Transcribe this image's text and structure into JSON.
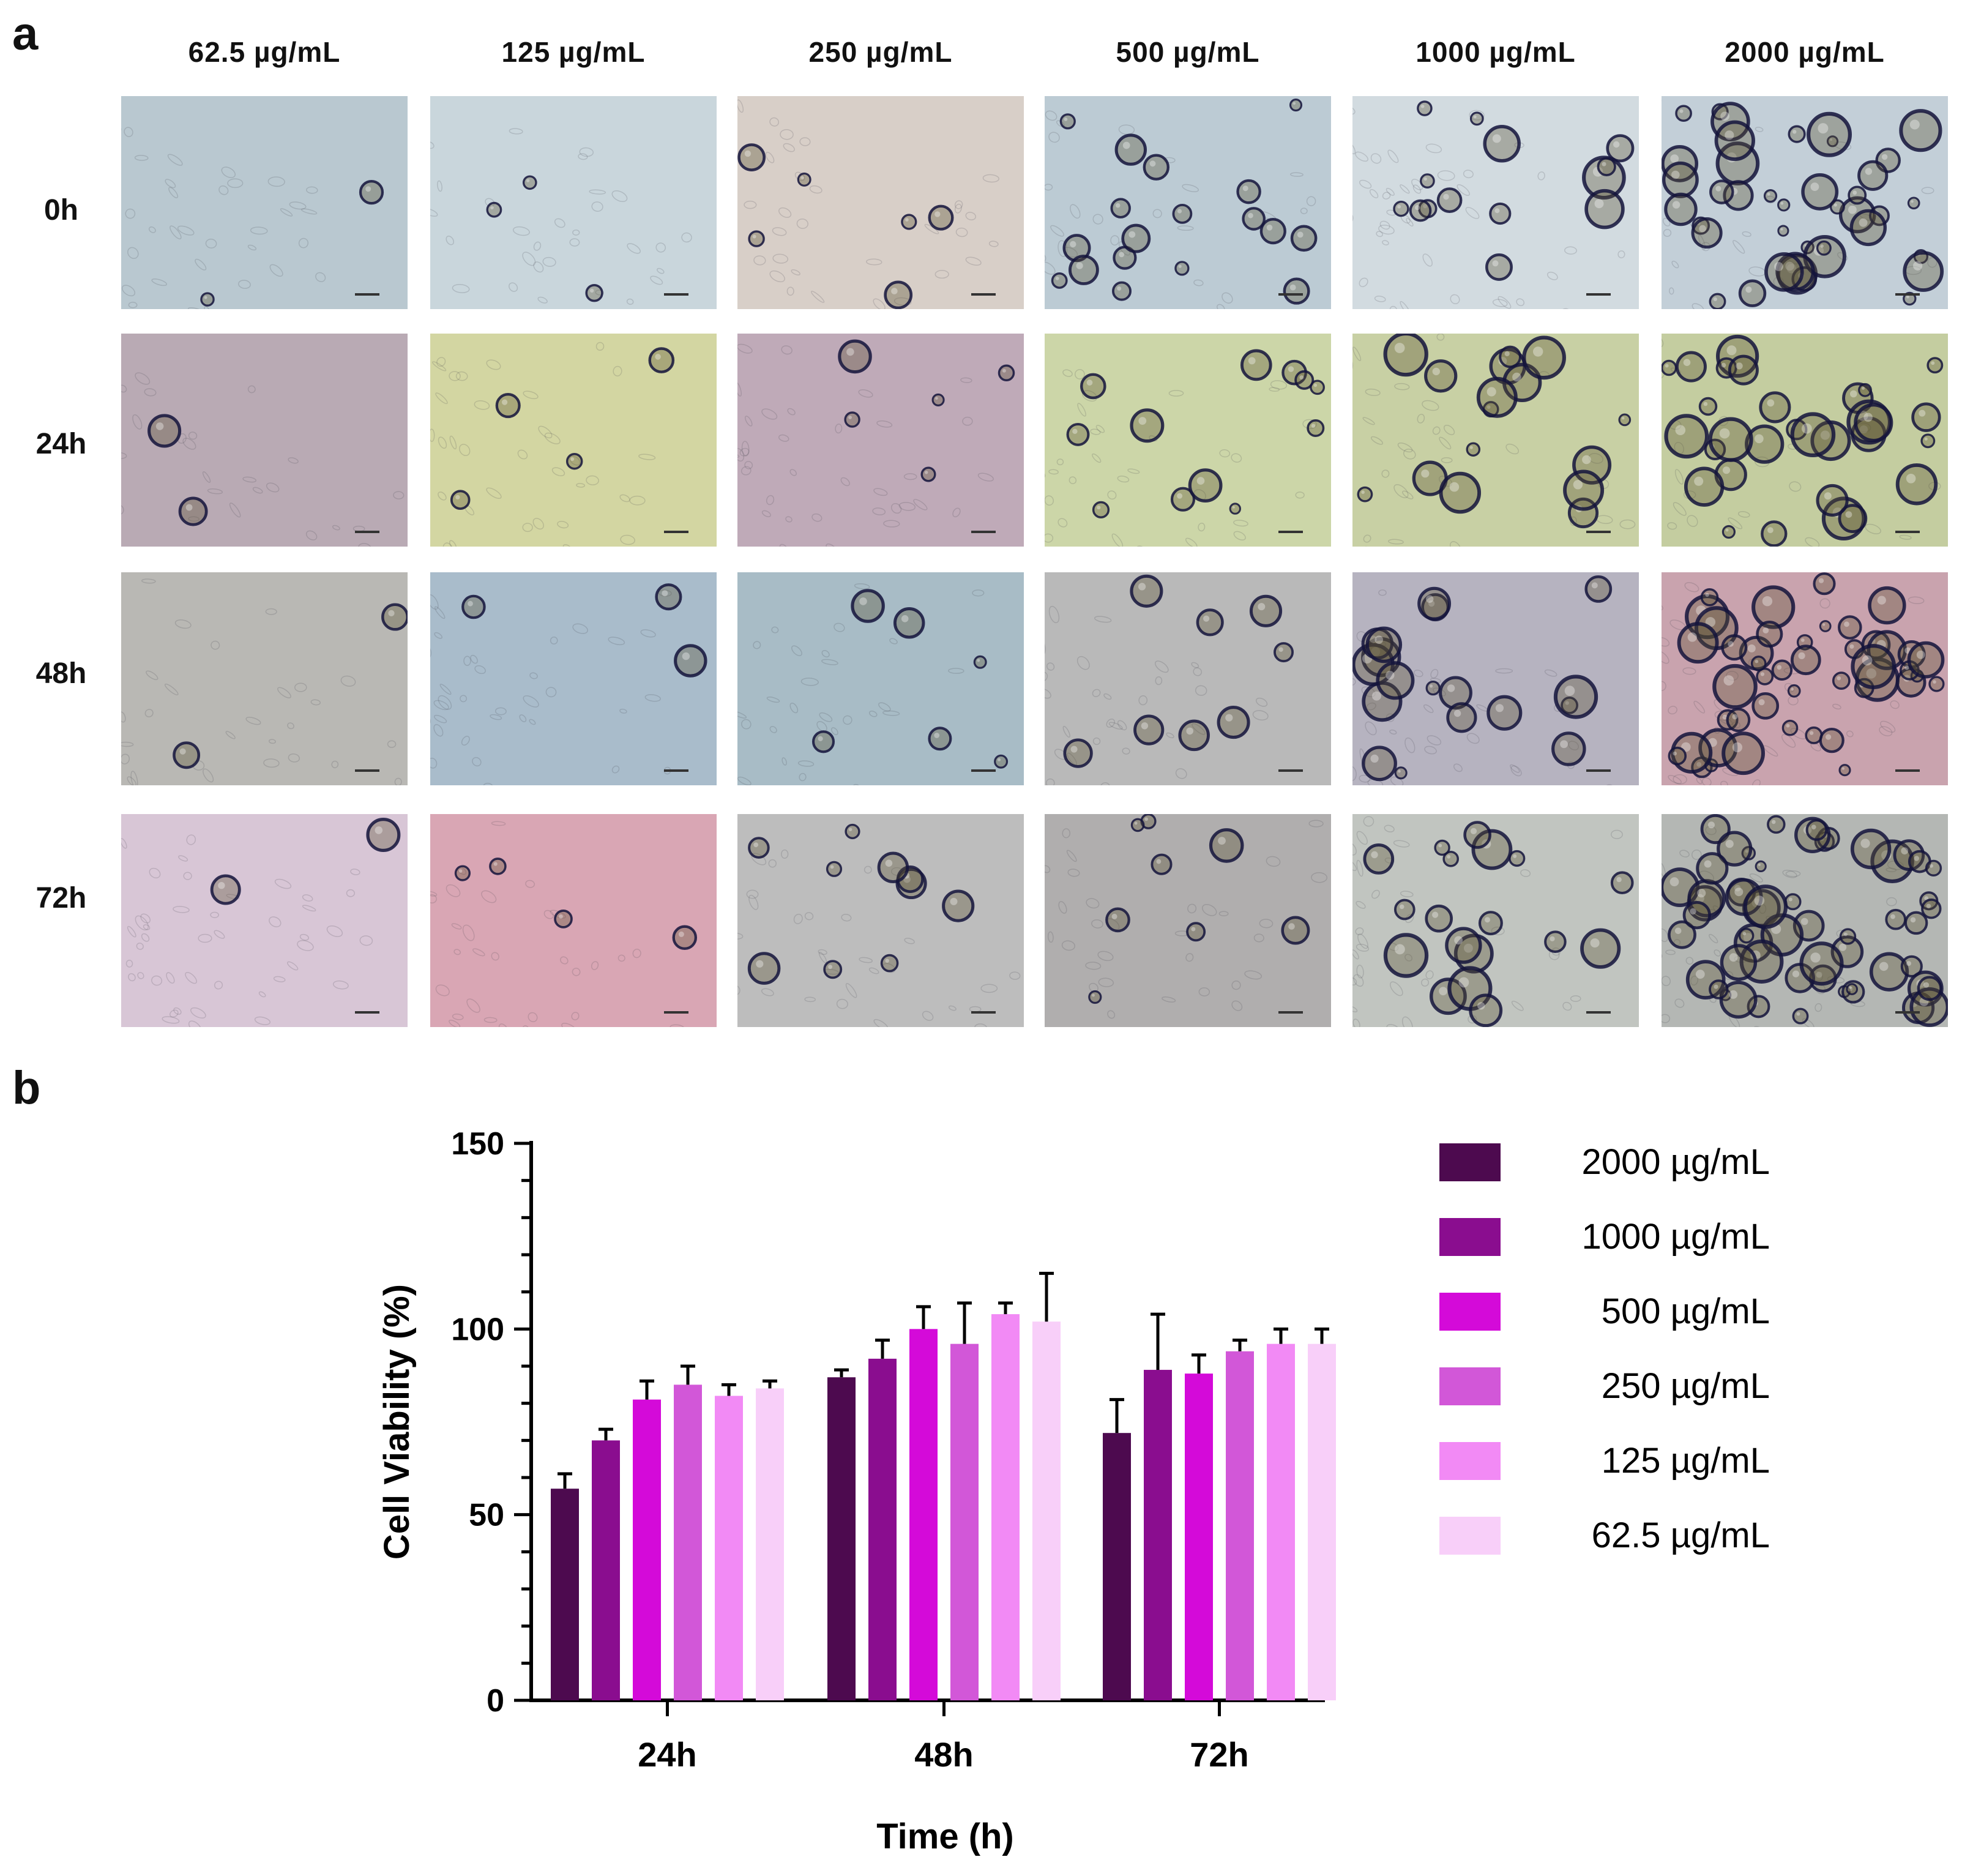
{
  "panel_a": {
    "label": "a",
    "column_headers": [
      "62.5 µg/mL",
      "125 µg/mL",
      "250 µg/mL",
      "500 µg/mL",
      "1000 µg/mL",
      "2000 µg/mL"
    ],
    "row_headers": [
      "0h",
      "24h",
      "48h",
      "72h"
    ],
    "image_description": "Brightfield micrographs of adherent cells with spherical microparticles; particle count rises with concentration"
  },
  "panel_b": {
    "label": "b"
  },
  "tint_colors": [
    [
      "#b9c8d0",
      "#c9d6dc",
      "#d8cfc8",
      "#bccbd4",
      "#d2dbe0",
      "#c3cfd8"
    ],
    [
      "#b9aab4",
      "#d3d6a2",
      "#bfaab8",
      "#ccd6a8",
      "#c8d0a4",
      "#c4cda0"
    ],
    [
      "#b9b8b4",
      "#a9bccb",
      "#a8bcc6",
      "#b9b9b9",
      "#b6b3c0",
      "#c9a3ae"
    ],
    [
      "#d8c6d6",
      "#d9a6b4",
      "#bdbdbd",
      "#b0aeae",
      "#c1c5c0",
      "#b4b7b4"
    ]
  ],
  "particle_counts": [
    [
      2,
      3,
      6,
      18,
      14,
      40
    ],
    [
      2,
      4,
      5,
      12,
      16,
      30
    ],
    [
      2,
      3,
      6,
      8,
      18,
      45
    ],
    [
      2,
      4,
      10,
      8,
      18,
      55
    ]
  ],
  "chart_data": {
    "type": "bar",
    "title": "",
    "xlabel": "Time (h)",
    "ylabel": "Cell Viability (%)",
    "ylim": [
      0,
      150
    ],
    "yticks": [
      0,
      50,
      100,
      150
    ],
    "categories": [
      "24h",
      "48h",
      "72h"
    ],
    "series": [
      {
        "name": "2000 µg/mL",
        "color": "#4d0a4f",
        "values": [
          57,
          87,
          72
        ],
        "errors": [
          4,
          2,
          9
        ]
      },
      {
        "name": "1000 µg/mL",
        "color": "#8a0d8f",
        "values": [
          70,
          92,
          89
        ],
        "errors": [
          3,
          5,
          15
        ]
      },
      {
        "name": "500 µg/mL",
        "color": "#d40ad9",
        "values": [
          81,
          100,
          88
        ],
        "errors": [
          5,
          6,
          5
        ]
      },
      {
        "name": "250 µg/mL",
        "color": "#d257d8",
        "values": [
          85,
          96,
          94
        ],
        "errors": [
          5,
          11,
          3
        ]
      },
      {
        "name": "125 µg/mL",
        "color": "#f28af5",
        "values": [
          82,
          104,
          96
        ],
        "errors": [
          3,
          3,
          4
        ]
      },
      {
        "name": "62.5 µg/mL",
        "color": "#f8cff9",
        "values": [
          84,
          102,
          96
        ],
        "errors": [
          2,
          13,
          4
        ]
      }
    ],
    "legend_position": "right"
  }
}
